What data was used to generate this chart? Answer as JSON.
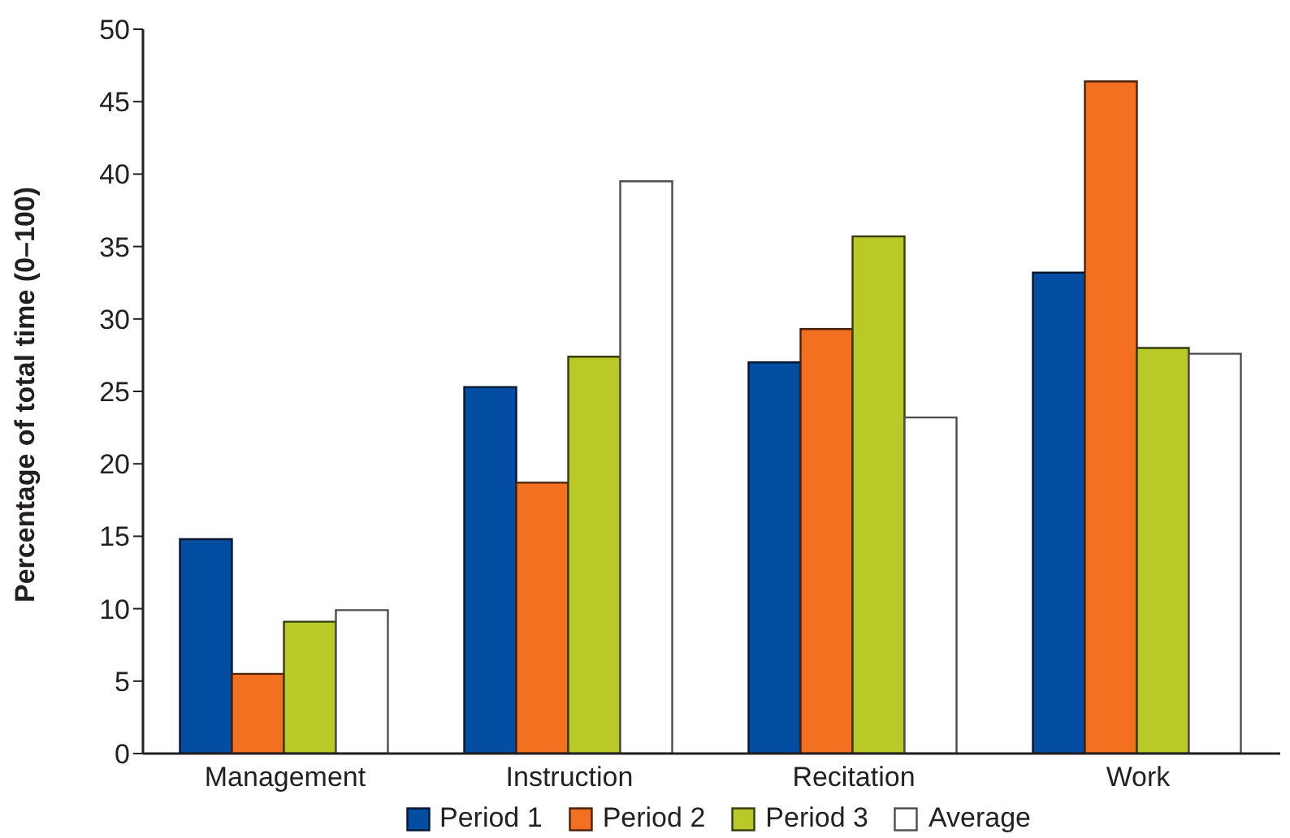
{
  "chart_data": {
    "type": "bar",
    "ylabel": "Percentage of total time (0–100)",
    "categories": [
      "Management",
      "Instruction",
      "Recitation",
      "Work"
    ],
    "series": [
      {
        "name": "Period 1",
        "color": "#034ea2",
        "values": [
          14.8,
          25.3,
          27.0,
          33.2
        ]
      },
      {
        "name": "Period 2",
        "color": "#f37021",
        "values": [
          5.5,
          18.7,
          29.3,
          46.4
        ]
      },
      {
        "name": "Period 3",
        "color": "#b8c928",
        "values": [
          9.1,
          27.4,
          35.7,
          28.0
        ]
      },
      {
        "name": "Average",
        "color": "#ffffff",
        "values": [
          9.9,
          39.5,
          23.2,
          27.6
        ]
      }
    ],
    "ylim": [
      0,
      50
    ],
    "yticks": [
      0,
      5,
      10,
      15,
      20,
      25,
      30,
      35,
      40,
      45,
      50
    ],
    "grid": false,
    "legend": "bottom"
  }
}
